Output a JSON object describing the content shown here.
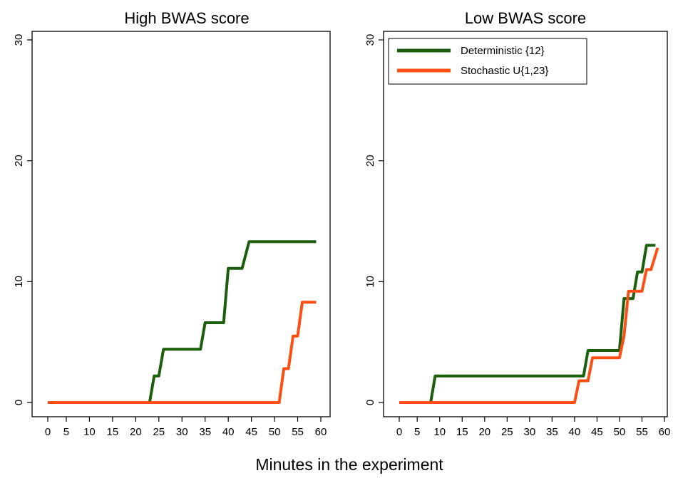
{
  "xlabel": "Minutes in the experiment",
  "chart_data": [
    {
      "type": "line",
      "title": "High BWAS score",
      "xlim": [
        1,
        60
      ],
      "ylim": [
        0,
        30
      ],
      "xticks": [
        0,
        5,
        10,
        15,
        20,
        25,
        30,
        35,
        40,
        45,
        50,
        55,
        60
      ],
      "yticks": [
        0,
        10,
        20,
        30
      ],
      "series": [
        {
          "name": "Deterministic {12}",
          "color": "#1b5e0c",
          "points": [
            [
              1,
              0
            ],
            [
              23,
              0
            ],
            [
              24,
              2.2
            ],
            [
              25,
              2.2
            ],
            [
              26,
              4.4
            ],
            [
              34,
              4.4
            ],
            [
              35,
              6.6
            ],
            [
              39,
              6.6
            ],
            [
              40,
              11.1
            ],
            [
              43,
              11.1
            ],
            [
              44.5,
              13.3
            ],
            [
              59,
              13.3
            ]
          ]
        },
        {
          "name": "Stochastic U{1,23}",
          "color": "#fb4f14",
          "points": [
            [
              1,
              0
            ],
            [
              51,
              0
            ],
            [
              52,
              2.8
            ],
            [
              53,
              2.8
            ],
            [
              54,
              5.5
            ],
            [
              55,
              5.5
            ],
            [
              56,
              8.3
            ],
            [
              59,
              8.3
            ]
          ]
        }
      ]
    },
    {
      "type": "line",
      "title": "Low BWAS score",
      "xlim": [
        1,
        60
      ],
      "ylim": [
        0,
        30
      ],
      "xticks": [
        0,
        5,
        10,
        15,
        20,
        25,
        30,
        35,
        40,
        45,
        50,
        55,
        60
      ],
      "yticks": [
        0,
        10,
        20,
        30
      ],
      "legend": {
        "position": "top-left",
        "entries": [
          "Deterministic {12}",
          "Stochastic U{1,23}"
        ]
      },
      "series": [
        {
          "name": "Deterministic {12}",
          "color": "#1b5e0c",
          "points": [
            [
              1,
              0
            ],
            [
              8,
              0
            ],
            [
              9,
              2.2
            ],
            [
              42,
              2.2
            ],
            [
              43,
              4.3
            ],
            [
              50,
              4.3
            ],
            [
              51,
              8.6
            ],
            [
              53,
              8.6
            ],
            [
              54,
              10.8
            ],
            [
              55,
              10.8
            ],
            [
              56,
              13
            ],
            [
              58,
              13
            ]
          ]
        },
        {
          "name": "Stochastic U{1,23}",
          "color": "#fb4f14",
          "points": [
            [
              1,
              0
            ],
            [
              40,
              0
            ],
            [
              41,
              1.8
            ],
            [
              43,
              1.8
            ],
            [
              44,
              3.7
            ],
            [
              50,
              3.7
            ],
            [
              51,
              5.5
            ],
            [
              52,
              9.2
            ],
            [
              55,
              9.2
            ],
            [
              56,
              11
            ],
            [
              57,
              11
            ],
            [
              58.5,
              12.8
            ]
          ]
        }
      ]
    }
  ]
}
